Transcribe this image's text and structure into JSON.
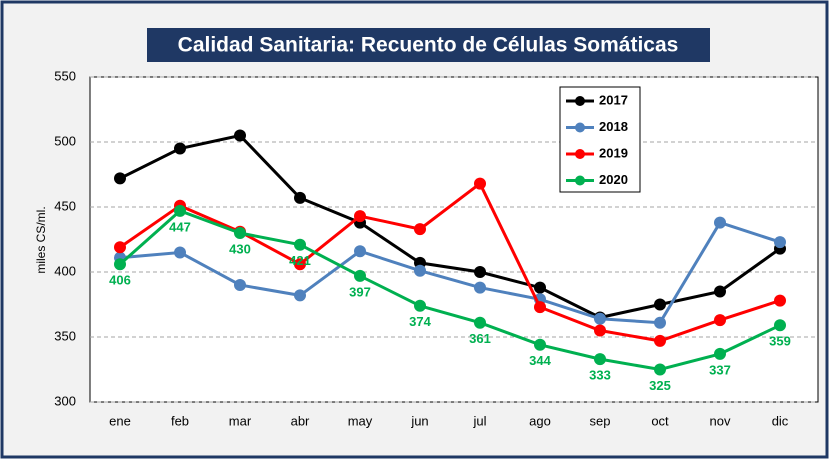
{
  "chart_data": {
    "type": "line",
    "title": "Calidad Sanitaria: Recuento de Células Somáticas",
    "y_label": "miles CS/ml.",
    "categories": [
      "ene",
      "feb",
      "mar",
      "abr",
      "may",
      "jun",
      "jul",
      "ago",
      "sep",
      "oct",
      "nov",
      "dic"
    ],
    "series": [
      {
        "name": "2017",
        "color": "#000000",
        "values": [
          472,
          495,
          505,
          457,
          438,
          407,
          400,
          388,
          365,
          375,
          385,
          418
        ]
      },
      {
        "name": "2018",
        "color": "#4f81bd",
        "values": [
          411,
          415,
          390,
          382,
          416,
          401,
          388,
          379,
          364,
          361,
          438,
          423
        ]
      },
      {
        "name": "2019",
        "color": "#ff0000",
        "values": [
          419,
          451,
          431,
          406,
          443,
          433,
          468,
          373,
          355,
          347,
          363,
          378
        ]
      },
      {
        "name": "2020",
        "color": "#00b050",
        "values": [
          406,
          447,
          430,
          421,
          397,
          374,
          361,
          344,
          333,
          325,
          337,
          359
        ],
        "show_labels": true
      }
    ],
    "ylim": [
      300,
      550
    ],
    "yticks": [
      300,
      350,
      400,
      450,
      500,
      550
    ],
    "grid": true,
    "legend": "top-right"
  }
}
